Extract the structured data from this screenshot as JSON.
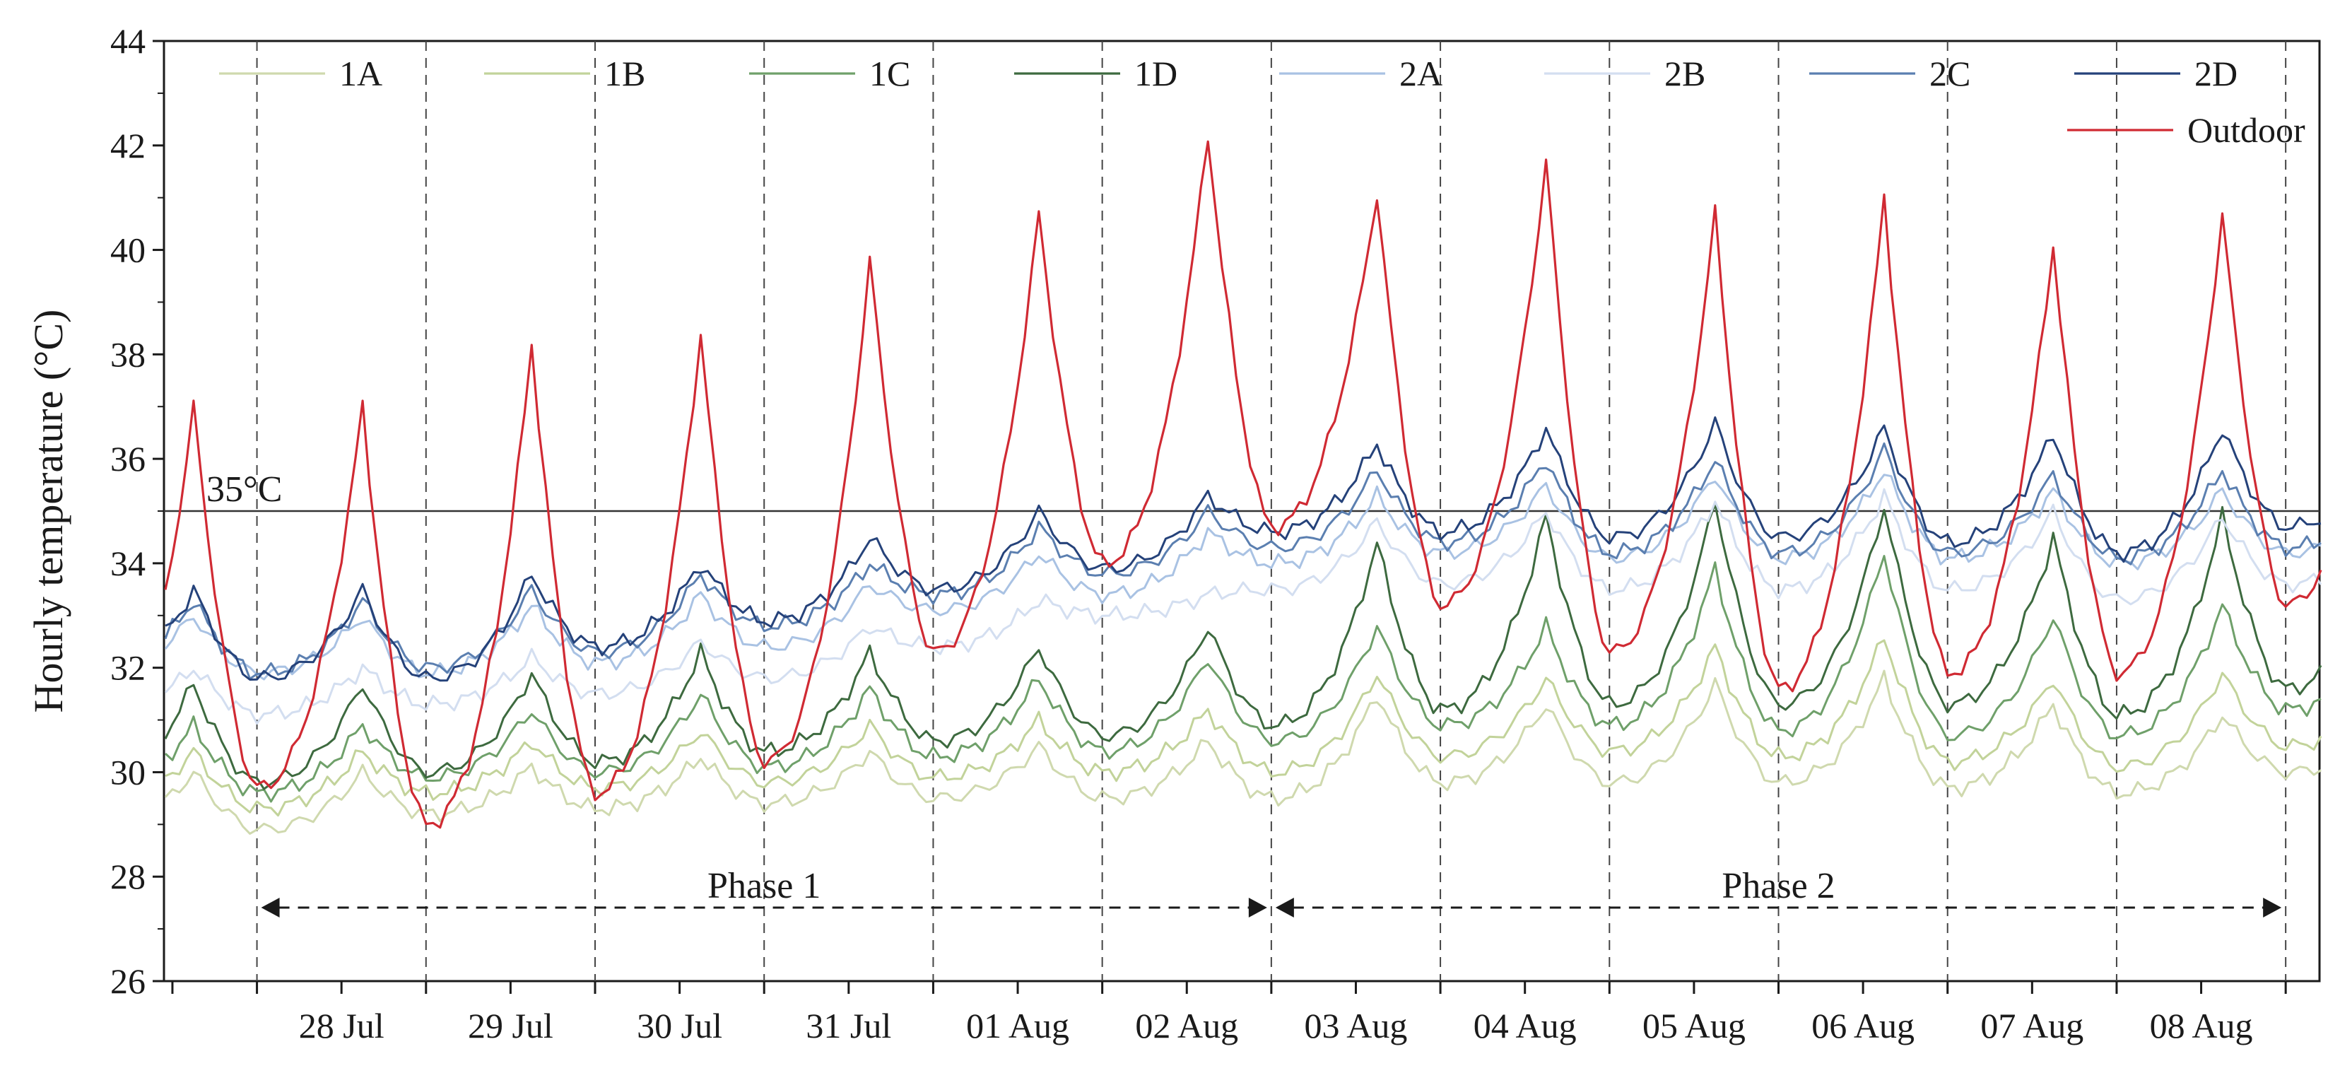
{
  "chart_data": {
    "type": "line",
    "title": "",
    "xlabel": "",
    "ylabel": "Hourly temperature (°C)",
    "ylim": [
      26,
      44
    ],
    "yticks": [
      26,
      28,
      30,
      32,
      34,
      36,
      38,
      40,
      42,
      44
    ],
    "x_unit": "day offset from 27 Jul 12:00",
    "xlim": [
      -0.55,
      12.2
    ],
    "day_labels": [
      "28 Jul",
      "29 Jul",
      "30 Jul",
      "31 Jul",
      "01 Aug",
      "02 Aug",
      "03 Aug",
      "04 Aug",
      "05 Aug",
      "06 Aug",
      "07 Aug",
      "08 Aug"
    ],
    "day_boundaries": [
      0,
      1,
      2,
      3,
      4,
      5,
      6,
      7,
      8,
      9,
      10,
      11,
      12
    ],
    "reference_line": {
      "value": 35,
      "label": "35°C"
    },
    "phases": [
      {
        "label": "Phase 1",
        "start": 0,
        "end": 6
      },
      {
        "label": "Phase 2",
        "start": 6,
        "end": 12
      }
    ],
    "series": [
      {
        "name": "1A",
        "color": "#cfd9ae",
        "night": [
          28.9,
          29.2,
          29.3,
          29.4,
          29.5,
          29.5,
          29.5,
          29.8,
          29.8,
          29.8,
          29.7,
          29.6,
          30.0
        ],
        "peak": [
          30.0,
          30.1,
          30.3,
          30.4,
          30.5,
          30.6,
          31.5,
          31.3,
          31.7,
          31.8,
          31.3,
          31.1
        ]
      },
      {
        "name": "1B",
        "color": "#c2d39a",
        "night": [
          29.3,
          29.6,
          29.7,
          29.8,
          29.9,
          30.0,
          30.0,
          30.3,
          30.4,
          30.3,
          30.2,
          30.1,
          30.5
        ],
        "peak": [
          30.4,
          30.6,
          30.8,
          30.9,
          31.0,
          31.2,
          31.9,
          31.8,
          32.4,
          32.6,
          31.8,
          31.9
        ]
      },
      {
        "name": "1C",
        "color": "#6fa06a",
        "night": [
          29.6,
          29.9,
          30.0,
          30.1,
          30.3,
          30.4,
          30.6,
          30.9,
          30.9,
          30.8,
          30.7,
          30.7,
          31.2
        ],
        "peak": [
          30.9,
          31.2,
          31.5,
          31.6,
          31.8,
          32.2,
          32.8,
          32.8,
          33.9,
          34.2,
          33.0,
          33.2
        ]
      },
      {
        "name": "1D",
        "color": "#3d6a3f",
        "night": [
          29.8,
          30.0,
          30.2,
          30.4,
          30.6,
          30.7,
          30.9,
          31.2,
          31.3,
          31.3,
          31.3,
          31.1,
          31.6
        ],
        "peak": [
          31.7,
          31.9,
          32.3,
          32.3,
          32.4,
          32.8,
          34.4,
          34.9,
          35.2,
          35.1,
          34.5,
          34.9
        ]
      },
      {
        "name": "2A",
        "color": "#a9c2e3",
        "night": [
          31.9,
          31.9,
          32.1,
          32.4,
          33.1,
          33.4,
          34.0,
          34.2,
          34.1,
          34.1,
          34.1,
          34.0,
          34.2
        ],
        "peak": [
          33.0,
          33.2,
          33.4,
          33.6,
          34.2,
          34.6,
          35.3,
          35.5,
          35.7,
          35.8,
          35.4,
          35.4
        ]
      },
      {
        "name": "2B",
        "color": "#d3def0",
        "night": [
          31.1,
          31.3,
          31.5,
          31.8,
          32.4,
          33.0,
          33.5,
          33.6,
          33.5,
          33.5,
          33.5,
          33.3,
          33.6
        ],
        "peak": [
          32.0,
          32.2,
          32.5,
          32.8,
          33.3,
          33.4,
          34.8,
          35.0,
          35.2,
          35.3,
          35.0,
          34.9
        ]
      },
      {
        "name": "2C",
        "color": "#5b7fb0",
        "night": [
          31.9,
          32.0,
          32.3,
          32.8,
          33.4,
          33.8,
          34.3,
          34.4,
          34.2,
          34.2,
          34.2,
          34.1,
          34.3
        ],
        "peak": [
          33.3,
          33.5,
          33.8,
          34.0,
          34.7,
          35.0,
          35.8,
          36.0,
          36.0,
          36.2,
          35.7,
          35.8
        ]
      },
      {
        "name": "2D",
        "color": "#25427a",
        "night": [
          31.8,
          31.8,
          32.4,
          32.9,
          33.5,
          33.9,
          34.6,
          34.6,
          34.5,
          34.5,
          34.4,
          34.2,
          34.7
        ],
        "peak": [
          33.5,
          33.8,
          34.0,
          34.5,
          35.0,
          35.3,
          36.3,
          36.6,
          36.7,
          36.6,
          36.5,
          36.6
        ]
      },
      {
        "name": "Outdoor",
        "color": "#d02a33",
        "night": [
          29.7,
          29.0,
          29.6,
          30.2,
          32.3,
          34.0,
          34.7,
          33.2,
          32.3,
          31.6,
          31.9,
          31.9,
          33.2
        ],
        "peak": [
          37.0,
          38.2,
          38.4,
          39.8,
          40.7,
          42.2,
          41.1,
          41.7,
          40.7,
          41.0,
          40.1,
          40.7
        ]
      }
    ]
  }
}
